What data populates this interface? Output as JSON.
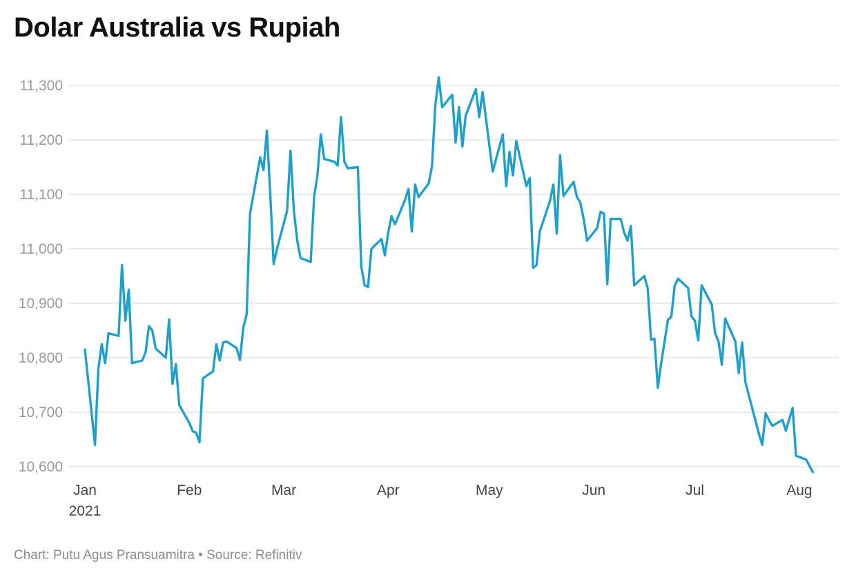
{
  "chart_data": {
    "type": "line",
    "title": "Dolar Australia vs Rupiah",
    "xlabel": "",
    "ylabel": "",
    "ylim": [
      10600,
      11300
    ],
    "yticks": [
      {
        "value": 10600,
        "label": "10,600"
      },
      {
        "value": 10700,
        "label": "10,700"
      },
      {
        "value": 10800,
        "label": "10,800"
      },
      {
        "value": 10900,
        "label": "10,900"
      },
      {
        "value": 11000,
        "label": "11,000"
      },
      {
        "value": 11100,
        "label": "11,100"
      },
      {
        "value": 11200,
        "label": "11,200"
      },
      {
        "value": 11300,
        "label": "11,300"
      }
    ],
    "xlim": [
      "2021-01-01",
      "2021-08-09"
    ],
    "xticks": [
      {
        "date": "2021-01-01",
        "label": "Jan",
        "sublabel": "2021"
      },
      {
        "date": "2021-02-01",
        "label": "Feb"
      },
      {
        "date": "2021-03-01",
        "label": "Mar"
      },
      {
        "date": "2021-04-01",
        "label": "Apr"
      },
      {
        "date": "2021-05-01",
        "label": "May"
      },
      {
        "date": "2021-06-01",
        "label": "Jun"
      },
      {
        "date": "2021-07-01",
        "label": "Jul"
      },
      {
        "date": "2021-08-01",
        "label": "Aug"
      }
    ],
    "grid": true,
    "line_color": "#1f9fcc",
    "series": [
      {
        "points": [
          [
            "2021-01-01",
            10815
          ],
          [
            "2021-01-04",
            10640
          ],
          [
            "2021-01-05",
            10780
          ],
          [
            "2021-01-06",
            10825
          ],
          [
            "2021-01-07",
            10790
          ],
          [
            "2021-01-08",
            10845
          ],
          [
            "2021-01-11",
            10840
          ],
          [
            "2021-01-12",
            10970
          ],
          [
            "2021-01-13",
            10868
          ],
          [
            "2021-01-14",
            10925
          ],
          [
            "2021-01-15",
            10790
          ],
          [
            "2021-01-18",
            10795
          ],
          [
            "2021-01-19",
            10810
          ],
          [
            "2021-01-20",
            10858
          ],
          [
            "2021-01-21",
            10850
          ],
          [
            "2021-01-22",
            10817
          ],
          [
            "2021-01-25",
            10800
          ],
          [
            "2021-01-26",
            10870
          ],
          [
            "2021-01-27",
            10752
          ],
          [
            "2021-01-28",
            10788
          ],
          [
            "2021-01-29",
            10713
          ],
          [
            "2021-02-01",
            10680
          ],
          [
            "2021-02-02",
            10665
          ],
          [
            "2021-02-03",
            10662
          ],
          [
            "2021-02-04",
            10645
          ],
          [
            "2021-02-05",
            10762
          ],
          [
            "2021-02-08",
            10775
          ],
          [
            "2021-02-09",
            10825
          ],
          [
            "2021-02-10",
            10795
          ],
          [
            "2021-02-11",
            10828
          ],
          [
            "2021-02-12",
            10830
          ],
          [
            "2021-02-15",
            10818
          ],
          [
            "2021-02-16",
            10796
          ],
          [
            "2021-02-17",
            10855
          ],
          [
            "2021-02-18",
            10880
          ],
          [
            "2021-02-19",
            11065
          ],
          [
            "2021-02-22",
            11168
          ],
          [
            "2021-02-23",
            11145
          ],
          [
            "2021-02-24",
            11217
          ],
          [
            "2021-02-25",
            11100
          ],
          [
            "2021-02-26",
            10972
          ],
          [
            "2021-02-27",
            11000
          ],
          [
            "2021-03-02",
            11070
          ],
          [
            "2021-03-03",
            11180
          ],
          [
            "2021-03-04",
            11070
          ],
          [
            "2021-03-05",
            11015
          ],
          [
            "2021-03-06",
            10983
          ],
          [
            "2021-03-09",
            10976
          ],
          [
            "2021-03-10",
            11095
          ],
          [
            "2021-03-11",
            11135
          ],
          [
            "2021-03-12",
            11210
          ],
          [
            "2021-03-13",
            11165
          ],
          [
            "2021-03-16",
            11160
          ],
          [
            "2021-03-17",
            11153
          ],
          [
            "2021-03-18",
            11242
          ],
          [
            "2021-03-19",
            11160
          ],
          [
            "2021-03-20",
            11148
          ],
          [
            "2021-03-23",
            11150
          ],
          [
            "2021-03-24",
            10968
          ],
          [
            "2021-03-25",
            10933
          ],
          [
            "2021-03-26",
            10930
          ],
          [
            "2021-03-27",
            11000
          ],
          [
            "2021-03-30",
            11018
          ],
          [
            "2021-03-31",
            10988
          ],
          [
            "2021-04-01",
            11030
          ],
          [
            "2021-04-02",
            11060
          ],
          [
            "2021-04-03",
            11045
          ],
          [
            "2021-04-06",
            11090
          ],
          [
            "2021-04-07",
            11110
          ],
          [
            "2021-04-08",
            11032
          ],
          [
            "2021-04-09",
            11118
          ],
          [
            "2021-04-10",
            11095
          ],
          [
            "2021-04-13",
            11120
          ],
          [
            "2021-04-14",
            11152
          ],
          [
            "2021-04-15",
            11265
          ],
          [
            "2021-04-16",
            11315
          ],
          [
            "2021-04-17",
            11260
          ],
          [
            "2021-04-20",
            11283
          ],
          [
            "2021-04-21",
            11195
          ],
          [
            "2021-04-22",
            11260
          ],
          [
            "2021-04-23",
            11188
          ],
          [
            "2021-04-24",
            11245
          ],
          [
            "2021-04-27",
            11293
          ],
          [
            "2021-04-28",
            11242
          ],
          [
            "2021-04-29",
            11288
          ],
          [
            "2021-05-02",
            11142
          ],
          [
            "2021-05-05",
            11210
          ],
          [
            "2021-05-06",
            11115
          ],
          [
            "2021-05-07",
            11178
          ],
          [
            "2021-05-08",
            11135
          ],
          [
            "2021-05-09",
            11198
          ],
          [
            "2021-05-12",
            11115
          ],
          [
            "2021-05-13",
            11130
          ],
          [
            "2021-05-14",
            10965
          ],
          [
            "2021-05-15",
            10970
          ],
          [
            "2021-05-16",
            11032
          ],
          [
            "2021-05-19",
            11088
          ],
          [
            "2021-05-20",
            11118
          ],
          [
            "2021-05-21",
            11028
          ],
          [
            "2021-05-22",
            11172
          ],
          [
            "2021-05-23",
            11097
          ],
          [
            "2021-05-26",
            11123
          ],
          [
            "2021-05-27",
            11095
          ],
          [
            "2021-05-28",
            11085
          ],
          [
            "2021-05-29",
            11055
          ],
          [
            "2021-05-30",
            11015
          ],
          [
            "2021-06-02",
            11038
          ],
          [
            "2021-06-03",
            11068
          ],
          [
            "2021-06-04",
            11065
          ],
          [
            "2021-06-05",
            10935
          ],
          [
            "2021-06-06",
            11055
          ],
          [
            "2021-06-09",
            11055
          ],
          [
            "2021-06-10",
            11030
          ],
          [
            "2021-06-11",
            11015
          ],
          [
            "2021-06-12",
            11042
          ],
          [
            "2021-06-13",
            10933
          ],
          [
            "2021-06-16",
            10950
          ],
          [
            "2021-06-17",
            10927
          ],
          [
            "2021-06-18",
            10833
          ],
          [
            "2021-06-19",
            10835
          ],
          [
            "2021-06-20",
            10745
          ],
          [
            "2021-06-21",
            10790
          ],
          [
            "2021-06-23",
            10870
          ],
          [
            "2021-06-24",
            10875
          ],
          [
            "2021-06-25",
            10932
          ],
          [
            "2021-06-26",
            10945
          ],
          [
            "2021-06-29",
            10928
          ],
          [
            "2021-06-30",
            10876
          ],
          [
            "2021-07-01",
            10868
          ],
          [
            "2021-07-02",
            10832
          ],
          [
            "2021-07-03",
            10933
          ],
          [
            "2021-07-06",
            10898
          ],
          [
            "2021-07-07",
            10845
          ],
          [
            "2021-07-08",
            10830
          ],
          [
            "2021-07-09",
            10787
          ],
          [
            "2021-07-10",
            10872
          ],
          [
            "2021-07-13",
            10830
          ],
          [
            "2021-07-14",
            10772
          ],
          [
            "2021-07-15",
            10828
          ],
          [
            "2021-07-16",
            10755
          ],
          [
            "2021-07-20",
            10660
          ],
          [
            "2021-07-21",
            10640
          ],
          [
            "2021-07-22",
            10698
          ],
          [
            "2021-07-23",
            10685
          ],
          [
            "2021-07-24",
            10675
          ],
          [
            "2021-07-27",
            10686
          ],
          [
            "2021-07-28",
            10666
          ],
          [
            "2021-07-30",
            10708
          ],
          [
            "2021-07-31",
            10620
          ],
          [
            "2021-08-03",
            10613
          ],
          [
            "2021-08-05",
            10590
          ]
        ]
      }
    ]
  },
  "footer": "Chart: Putu Agus Pransuamitra • Source: Refinitiv"
}
